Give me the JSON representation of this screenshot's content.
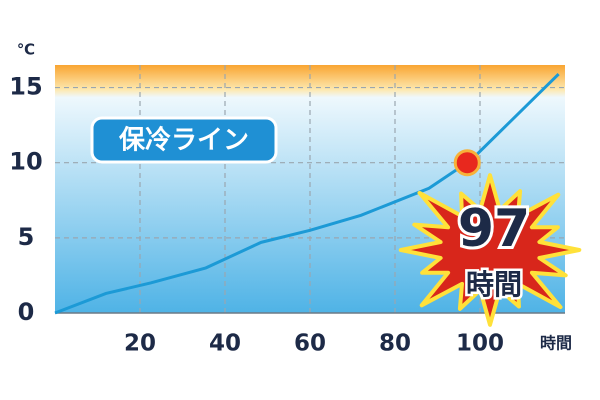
{
  "chart_data": {
    "type": "line",
    "y_unit": "℃",
    "x_unit": "時間",
    "annotation": "保冷ライン",
    "x": [
      0,
      12,
      22.5,
      35.5,
      48.5,
      60,
      72,
      88,
      98,
      118.5
    ],
    "values": [
      0,
      1.3,
      2,
      3,
      4.7,
      5.5,
      6.5,
      8.3,
      10.2,
      15.9
    ],
    "color": "#1c9ad6",
    "xlim": [
      0,
      120
    ],
    "ylim": [
      0,
      16.5
    ],
    "xticks": [
      20,
      40,
      60,
      80,
      100
    ],
    "yticks": [
      0,
      5,
      10,
      15
    ],
    "grid": true,
    "highlight": {
      "x": 97,
      "y": 10,
      "unit": "時間",
      "color": "#e8281e"
    }
  }
}
